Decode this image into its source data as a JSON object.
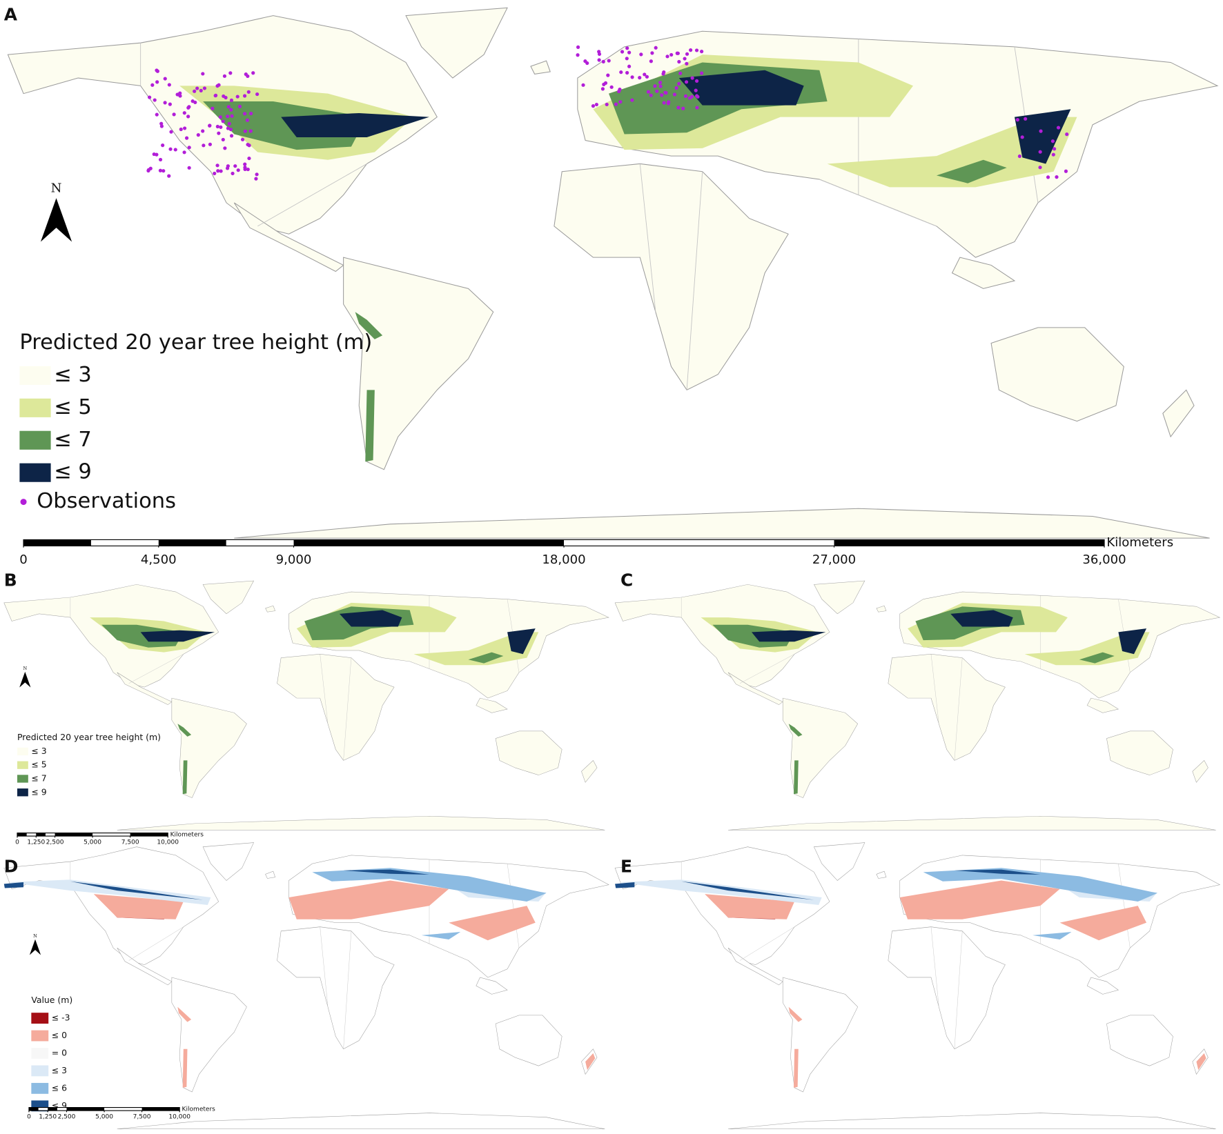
{
  "panels": [
    {
      "label": "A",
      "legend": {
        "title": "Predicted 20 year tree height (m)",
        "items": [
          {
            "label": "≤ 3",
            "color": "#fdfdf0"
          },
          {
            "label": "≤ 5",
            "color": "#dde89a"
          },
          {
            "label": "≤ 7",
            "color": "#5f9655"
          },
          {
            "label": "≤ 9",
            "color": "#0d2447"
          }
        ],
        "observations": "Observations",
        "observations_color": "#b21ed8"
      },
      "north": "N",
      "scale": {
        "unit": "Kilometers",
        "ticks": [
          0,
          {
            "value": 4500,
            "label": "4,500"
          },
          {
            "value": 9000,
            "label": "9,000"
          },
          {
            "value": 18000,
            "label": "18,000"
          },
          {
            "value": 27000,
            "label": "27,000"
          },
          {
            "value": 36000,
            "label": "36,000"
          }
        ]
      }
    },
    {
      "label": "B",
      "legend": {
        "title": "Predicted 20 year tree height (m)",
        "items": [
          {
            "label": "≤ 3",
            "color": "#fdfdf0"
          },
          {
            "label": "≤ 5",
            "color": "#dde89a"
          },
          {
            "label": "≤ 7",
            "color": "#5f9655"
          },
          {
            "label": "≤ 9",
            "color": "#0d2447"
          }
        ]
      },
      "north": "N",
      "scale": {
        "unit": "Kilometers",
        "ticks": [
          0,
          {
            "value": 1250,
            "label": "1,250"
          },
          {
            "value": 2500,
            "label": "2,500"
          },
          {
            "value": 5000,
            "label": "5,000"
          },
          {
            "value": 7500,
            "label": "7,500"
          },
          {
            "value": 10000,
            "label": "10,000"
          }
        ]
      }
    },
    {
      "label": "C"
    },
    {
      "label": "D",
      "legend": {
        "title": "Value (m)",
        "items": [
          {
            "label": "≤ -3",
            "color": "#a50f15"
          },
          {
            "label": "≤ 0",
            "color": "#f5ab9c"
          },
          {
            "label": "= 0",
            "color": "#f7f7f7"
          },
          {
            "label": "≤ 3",
            "color": "#dbe9f6"
          },
          {
            "label": "≤ 6",
            "color": "#8cbbe2"
          },
          {
            "label": "≤ 9",
            "color": "#1c4f8a"
          }
        ]
      },
      "north": "N",
      "scale": {
        "unit": "Kilometers",
        "ticks": [
          0,
          {
            "value": 1250,
            "label": "1,250"
          },
          {
            "value": 2500,
            "label": "2,500"
          },
          {
            "value": 5000,
            "label": "5,000"
          },
          {
            "value": 7500,
            "label": "7,500"
          },
          {
            "value": 10000,
            "label": "10,000"
          }
        ]
      }
    },
    {
      "label": "E"
    }
  ]
}
